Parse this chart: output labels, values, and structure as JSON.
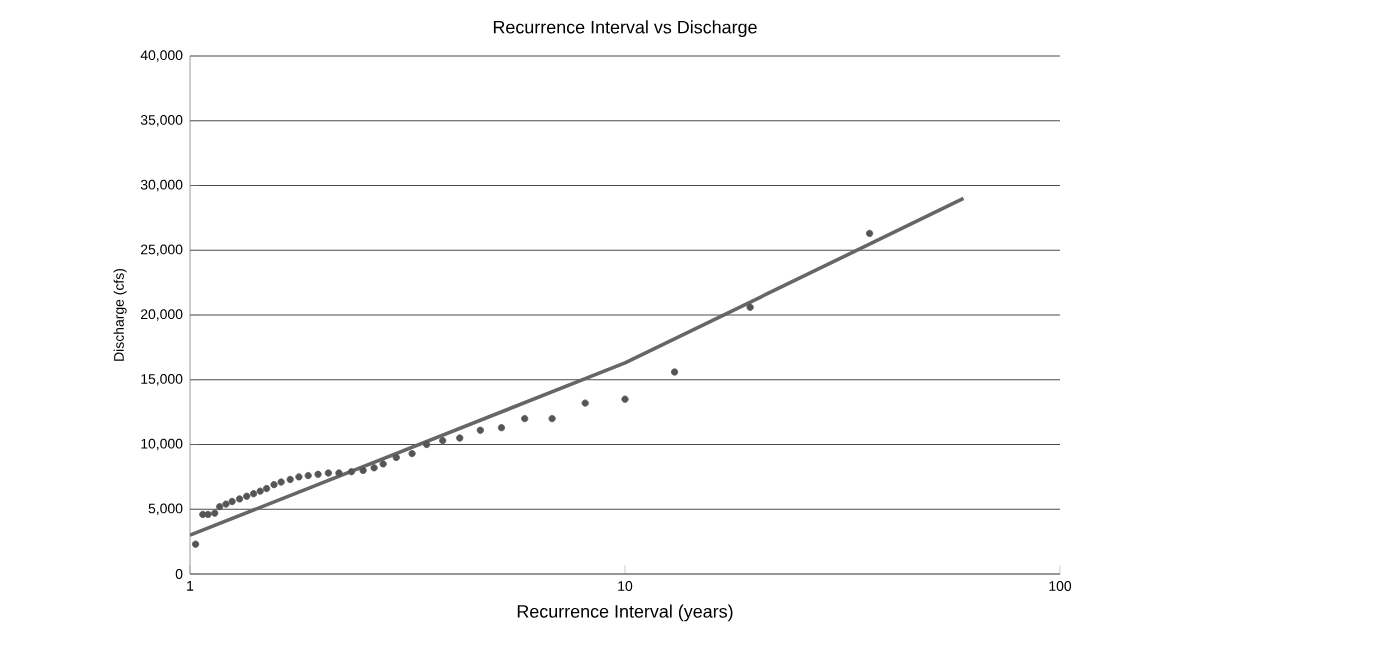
{
  "chart_data": {
    "type": "scatter",
    "title": "Recurrence Interval vs Discharge",
    "xlabel": "Recurrence Interval (years)",
    "ylabel": "Discharge (cfs)",
    "log": "x",
    "grid": "y",
    "xlim": [
      1,
      100
    ],
    "ylim": [
      0,
      40000
    ],
    "xticks": [
      1,
      10,
      100
    ],
    "yticks": [
      0,
      {
        "value": 5000,
        "label": "5,000"
      },
      {
        "value": 10000,
        "label": "10,000"
      },
      {
        "value": 15000,
        "label": "15,000"
      },
      {
        "value": 20000,
        "label": "20,000"
      },
      {
        "value": 25000,
        "label": "25,000"
      },
      {
        "value": 30000,
        "label": "30,000"
      },
      {
        "value": 35000,
        "label": "35,000"
      },
      {
        "value": 40000,
        "label": "40,000"
      }
    ],
    "series": [
      {
        "color": "#555555",
        "marker": "circle",
        "x": [
          1.03,
          1.07,
          1.1,
          1.14,
          1.17,
          1.21,
          1.25,
          1.3,
          1.35,
          1.4,
          1.45,
          1.5,
          1.56,
          1.62,
          1.7,
          1.78,
          1.87,
          1.97,
          2.08,
          2.2,
          2.35,
          2.5,
          2.65,
          2.78,
          2.98,
          3.24,
          3.5,
          3.81,
          4.17,
          4.65,
          5.2,
          5.88,
          6.8,
          8.1,
          10,
          13,
          19.4,
          36.5
        ],
        "values": [
          2300,
          4600,
          4600,
          4700,
          5200,
          5400,
          5600,
          5800,
          6000,
          6200,
          6400,
          6600,
          6900,
          7100,
          7300,
          7500,
          7600,
          7700,
          7800,
          7800,
          7900,
          8000,
          8200,
          8500,
          9000,
          9300,
          10000,
          10300,
          10500,
          11100,
          11300,
          12000,
          12000,
          13200,
          13500,
          15600,
          20600,
          26300
        ]
      },
      {
        "type": "line",
        "color": "#666666",
        "marker": "none",
        "line_style": "solid",
        "x": [
          1,
          10,
          60
        ],
        "values": [
          3000,
          16300,
          29000
        ]
      }
    ]
  }
}
